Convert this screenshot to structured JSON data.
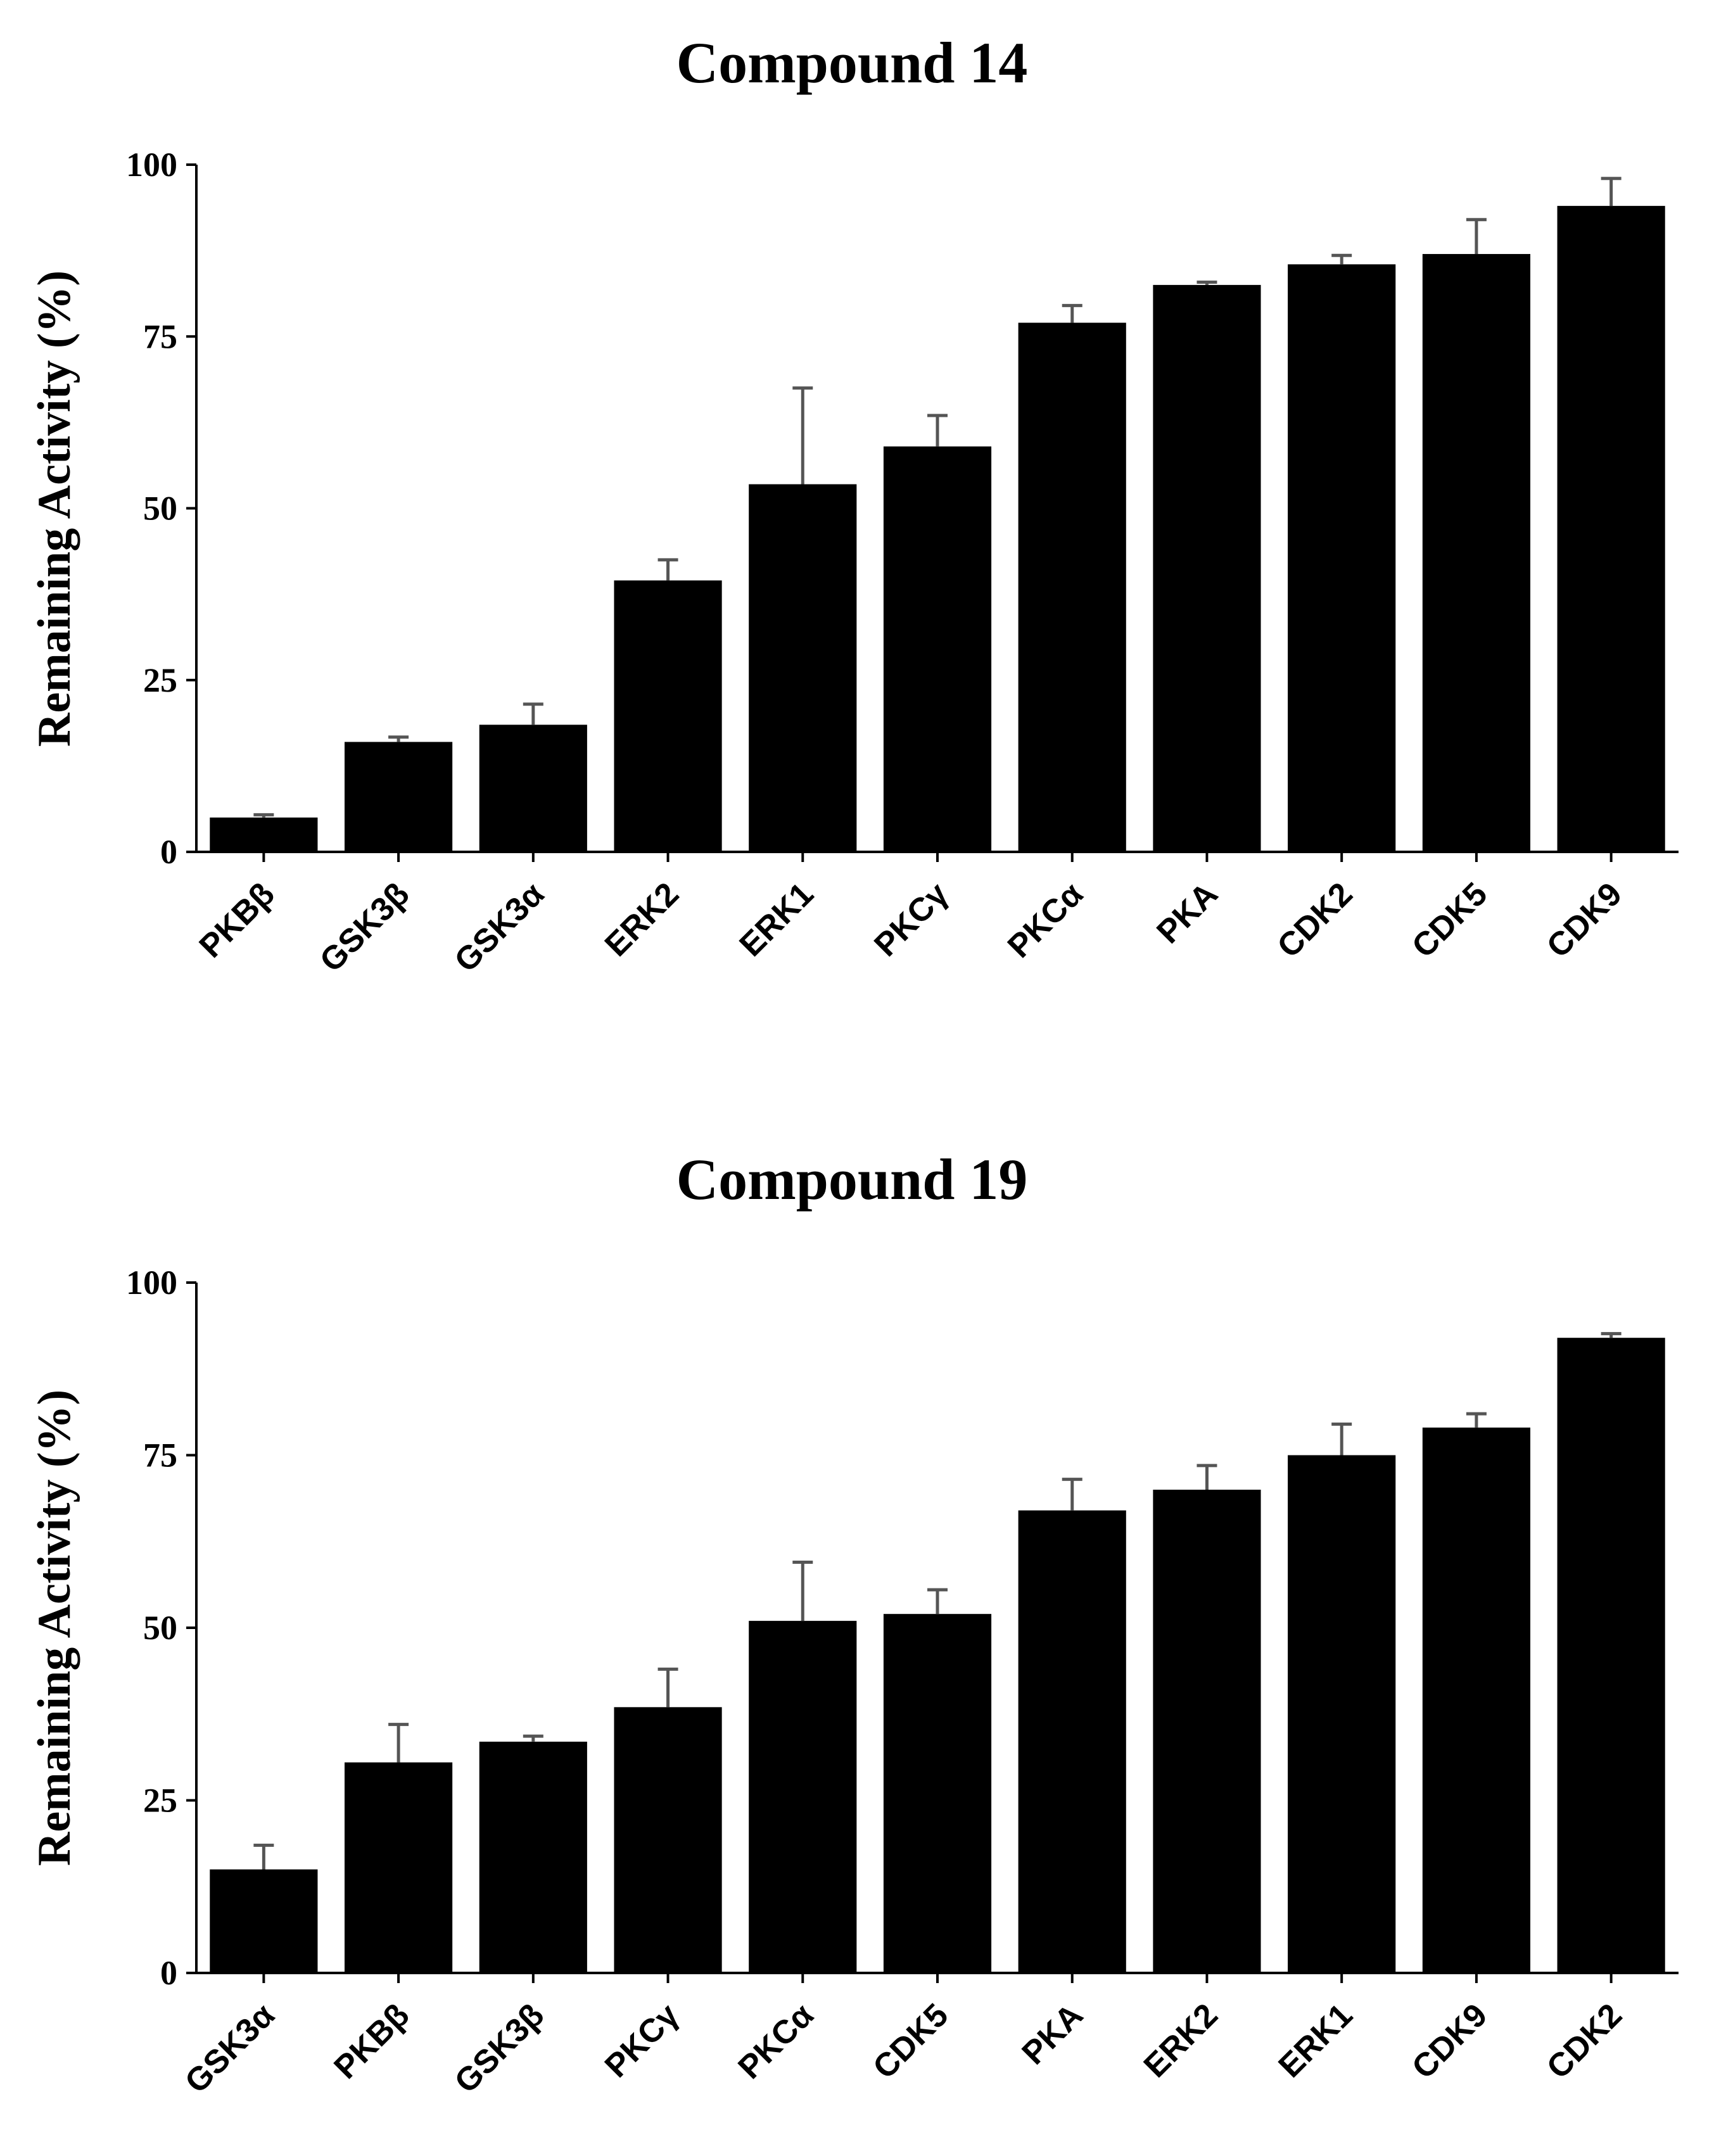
{
  "chart_data": [
    {
      "type": "bar",
      "title": "Compound 14",
      "ylabel": "Remaining Activity (%)",
      "xlabel": "",
      "ylim": [
        0,
        100
      ],
      "yticks": [
        0,
        25,
        50,
        75,
        100
      ],
      "categories": [
        "PKBβ",
        "GSK3β",
        "GSK3α",
        "ERK2",
        "ERK1",
        "PKCγ",
        "PKCα",
        "PKA",
        "CDK2",
        "CDK5",
        "CDK9"
      ],
      "values": [
        5,
        16,
        18.5,
        39.5,
        53.5,
        59,
        77,
        82.5,
        85.5,
        87,
        94
      ],
      "errors": [
        0.4,
        0.7,
        3,
        3,
        14,
        4.5,
        2.5,
        0.4,
        1.3,
        5,
        4
      ],
      "color": "#000000",
      "error_color": "#555555"
    },
    {
      "type": "bar",
      "title": "Compound 19",
      "ylabel": "Remaining Activity (%)",
      "xlabel": "",
      "ylim": [
        0,
        100
      ],
      "yticks": [
        0,
        25,
        50,
        75,
        100
      ],
      "categories": [
        "GSK3α",
        "PKBβ",
        "GSK3β",
        "PKCγ",
        "PKCα",
        "CDK5",
        "PKA",
        "ERK2",
        "ERK1",
        "CDK9",
        "CDK2"
      ],
      "values": [
        15,
        30.5,
        33.5,
        38.5,
        51,
        52,
        67,
        70,
        75,
        79,
        92
      ],
      "errors": [
        3.5,
        5.5,
        0.8,
        5.5,
        8.5,
        3.5,
        4.5,
        3.5,
        4.5,
        2,
        0.6
      ],
      "color": "#000000",
      "error_color": "#555555"
    }
  ]
}
